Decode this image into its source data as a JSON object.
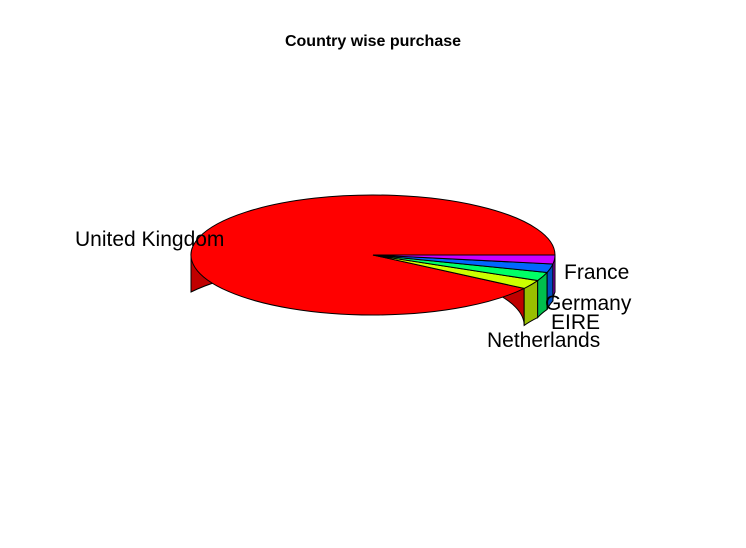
{
  "chart_data": {
    "type": "pie",
    "title": "Country wise purchase",
    "start_angle_deg": 0,
    "direction": "counterclockwise",
    "style": "3d",
    "slices": [
      {
        "label": "United Kingdom",
        "value": 90.6,
        "color": "#FF0000",
        "side_color": "#C00000"
      },
      {
        "label": "Netherlands",
        "value": 2.4,
        "color": "#CCFF00",
        "side_color": "#99BF00"
      },
      {
        "label": "EIRE",
        "value": 2.3,
        "color": "#00FF66",
        "side_color": "#00BF4D"
      },
      {
        "label": "Germany",
        "value": 2.3,
        "color": "#0066FF",
        "side_color": "#004DBF"
      },
      {
        "label": "France",
        "value": 2.4,
        "color": "#CC00FF",
        "side_color": "#9900BF"
      }
    ]
  }
}
